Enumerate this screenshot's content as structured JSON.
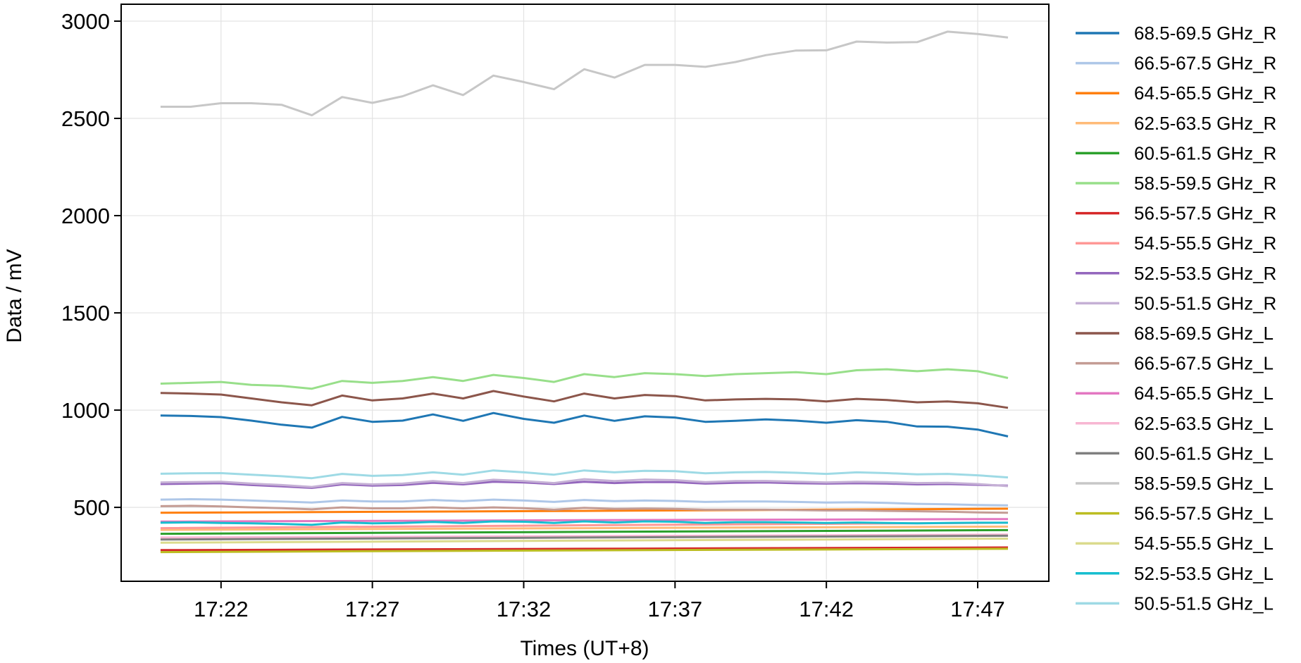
{
  "chart_data": {
    "type": "line",
    "title": "",
    "xlabel": "Times (UT+8)",
    "ylabel": "Data / mV",
    "xlim": [
      "17:18:42",
      "17:49:21"
    ],
    "ylim": [
      120,
      3087
    ],
    "xticks": [
      "17:22",
      "17:27",
      "17:32",
      "17:37",
      "17:42",
      "17:47"
    ],
    "yticks": [
      500,
      1000,
      1500,
      2000,
      2500,
      3000
    ],
    "grid": true,
    "legend_position": "outside-right",
    "minute_x": [
      "17:20",
      "17:21",
      "17:22",
      "17:23",
      "17:24",
      "17:25",
      "17:26",
      "17:27",
      "17:28",
      "17:29",
      "17:30",
      "17:31",
      "17:32",
      "17:33",
      "17:34",
      "17:35",
      "17:36",
      "17:37",
      "17:38",
      "17:39",
      "17:40",
      "17:41",
      "17:42",
      "17:43",
      "17:44",
      "17:45",
      "17:46",
      "17:47",
      "17:48"
    ],
    "series": [
      {
        "name": "68.5-69.5 GHz_R",
        "color": "#1f77b4",
        "values": [
          972,
          970,
          964,
          946,
          925,
          910,
          965,
          940,
          946,
          978,
          945,
          985,
          955,
          935,
          972,
          945,
          968,
          962,
          940,
          945,
          952,
          946,
          935,
          948,
          940,
          916,
          915,
          900,
          865
        ]
      },
      {
        "name": "66.5-67.5 GHz_R",
        "color": "#aec7e8",
        "values": [
          540,
          542,
          540,
          535,
          530,
          525,
          535,
          530,
          530,
          538,
          532,
          540,
          535,
          528,
          538,
          532,
          535,
          533,
          528,
          530,
          530,
          528,
          525,
          526,
          523,
          518,
          516,
          512,
          510
        ]
      },
      {
        "name": "64.5-65.5 GHz_R",
        "color": "#ff7f0e",
        "x": [
          "17:20",
          "17:34",
          "17:48"
        ],
        "values": [
          472,
          482,
          493
        ]
      },
      {
        "name": "62.5-63.5 GHz_R",
        "color": "#ffbb78",
        "x": [
          "17:20",
          "17:34",
          "17:48"
        ],
        "values": [
          384,
          393,
          401
        ]
      },
      {
        "name": "60.5-61.5 GHz_R",
        "color": "#2ca02c",
        "x": [
          "17:20",
          "17:34",
          "17:48"
        ],
        "values": [
          364,
          374,
          383
        ]
      },
      {
        "name": "58.5-59.5 GHz_R",
        "color": "#98df8a",
        "values": [
          1136,
          1140,
          1145,
          1130,
          1125,
          1110,
          1150,
          1140,
          1150,
          1170,
          1150,
          1181,
          1165,
          1145,
          1185,
          1170,
          1190,
          1185,
          1175,
          1185,
          1190,
          1195,
          1185,
          1205,
          1210,
          1200,
          1210,
          1200,
          1165
        ]
      },
      {
        "name": "56.5-57.5 GHz_R",
        "color": "#d62728",
        "x": [
          "17:20",
          "17:34",
          "17:48"
        ],
        "values": [
          280,
          287,
          294
        ]
      },
      {
        "name": "54.5-55.5 GHz_R",
        "color": "#ff9896",
        "x": [
          "17:20",
          "17:34",
          "17:48"
        ],
        "values": [
          393,
          408,
          421
        ]
      },
      {
        "name": "52.5-53.5 GHz_R",
        "color": "#9467bd",
        "values": [
          620,
          622,
          624,
          615,
          608,
          600,
          618,
          612,
          615,
          626,
          618,
          632,
          628,
          620,
          632,
          625,
          630,
          630,
          622,
          626,
          628,
          624,
          622,
          624,
          622,
          618,
          620,
          616,
          612
        ]
      },
      {
        "name": "50.5-51.5 GHz_R",
        "color": "#c5b0d5",
        "values": [
          628,
          630,
          632,
          622,
          615,
          605,
          625,
          618,
          622,
          635,
          625,
          642,
          635,
          625,
          645,
          635,
          643,
          640,
          630,
          635,
          636,
          632,
          628,
          632,
          630,
          625,
          626,
          620,
          609
        ]
      },
      {
        "name": "68.5-69.5 GHz_L",
        "color": "#8c564b",
        "values": [
          1088,
          1085,
          1080,
          1060,
          1040,
          1025,
          1075,
          1050,
          1060,
          1085,
          1060,
          1098,
          1070,
          1045,
          1085,
          1060,
          1078,
          1072,
          1050,
          1055,
          1058,
          1055,
          1045,
          1058,
          1052,
          1040,
          1045,
          1035,
          1012
        ]
      },
      {
        "name": "66.5-67.5 GHz_L",
        "color": "#c49c94",
        "values": [
          506,
          508,
          505,
          500,
          496,
          490,
          500,
          495,
          495,
          500,
          495,
          500,
          496,
          488,
          498,
          492,
          494,
          492,
          488,
          488,
          488,
          486,
          484,
          484,
          482,
          480,
          478,
          474,
          472
        ]
      },
      {
        "name": "64.5-65.5 GHz_L",
        "color": "#e377c2",
        "x": [
          "17:20",
          "17:34",
          "17:48"
        ],
        "values": [
          427,
          434,
          440
        ]
      },
      {
        "name": "62.5-63.5 GHz_L",
        "color": "#f7b6d2",
        "x": [
          "17:20",
          "17:34",
          "17:48"
        ],
        "values": [
          345,
          352,
          360
        ]
      },
      {
        "name": "60.5-61.5 GHz_L",
        "color": "#7f7f7f",
        "x": [
          "17:20",
          "17:34",
          "17:48"
        ],
        "values": [
          335,
          345,
          354
        ]
      },
      {
        "name": "58.5-59.5 GHz_L",
        "color": "#c7c7c7",
        "values": [
          2560,
          2560,
          2578,
          2578,
          2570,
          2516,
          2610,
          2580,
          2614,
          2670,
          2620,
          2720,
          2687,
          2650,
          2753,
          2710,
          2775,
          2775,
          2765,
          2790,
          2825,
          2849,
          2850,
          2895,
          2890,
          2892,
          2946,
          2934,
          2916
        ]
      },
      {
        "name": "56.5-57.5 GHz_L",
        "color": "#bcbd22",
        "x": [
          "17:20",
          "17:34",
          "17:48"
        ],
        "values": [
          270,
          279,
          287
        ]
      },
      {
        "name": "54.5-55.5 GHz_L",
        "color": "#dbdb8d",
        "x": [
          "17:20",
          "17:34",
          "17:48"
        ],
        "values": [
          318,
          329,
          339
        ]
      },
      {
        "name": "52.5-53.5 GHz_L",
        "color": "#17becf",
        "values": [
          421,
          423,
          420,
          418,
          415,
          410,
          422,
          418,
          420,
          425,
          420,
          428,
          426,
          420,
          428,
          422,
          428,
          426,
          420,
          424,
          424,
          422,
          420,
          422,
          420,
          418,
          420,
          421,
          421
        ]
      },
      {
        "name": "50.5-51.5 GHz_L",
        "color": "#9edae5",
        "values": [
          673,
          675,
          676,
          668,
          660,
          650,
          672,
          662,
          666,
          680,
          668,
          690,
          680,
          668,
          690,
          680,
          688,
          686,
          675,
          680,
          682,
          678,
          672,
          680,
          676,
          670,
          672,
          665,
          654
        ]
      }
    ]
  }
}
